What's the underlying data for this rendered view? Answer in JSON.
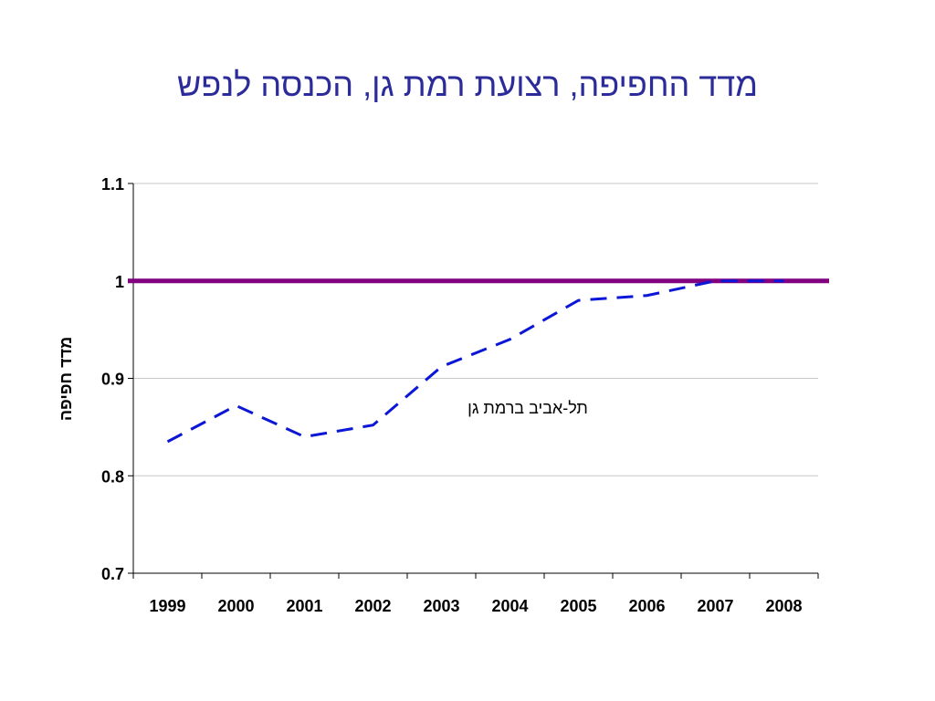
{
  "title": "מדד החפיפה, רצועת רמת גן, הכנסה לנפש",
  "chart_data": {
    "type": "line",
    "title": "מדד החפיפה, רצועת רמת גן, הכנסה לנפש",
    "xlabel": "",
    "ylabel": "מדד חפיפה",
    "categories": [
      "1999",
      "2000",
      "2001",
      "2002",
      "2003",
      "2004",
      "2005",
      "2006",
      "2007",
      "2008"
    ],
    "yticks": [
      "0.7",
      "0.8",
      "0.9",
      "1",
      "1.1"
    ],
    "ylim": [
      0.7,
      1.1
    ],
    "grid": true,
    "series": [
      {
        "name": "תל-אביב ברמת גן",
        "style": "dashed",
        "color": "#0b16d6",
        "values": [
          0.835,
          0.872,
          0.84,
          0.852,
          0.912,
          0.94,
          0.98,
          0.985,
          1.0,
          1.0
        ]
      }
    ],
    "reference_line": {
      "value": 1.0,
      "color": "#800080"
    },
    "annotation": "תל-אביב ברמת גן"
  }
}
